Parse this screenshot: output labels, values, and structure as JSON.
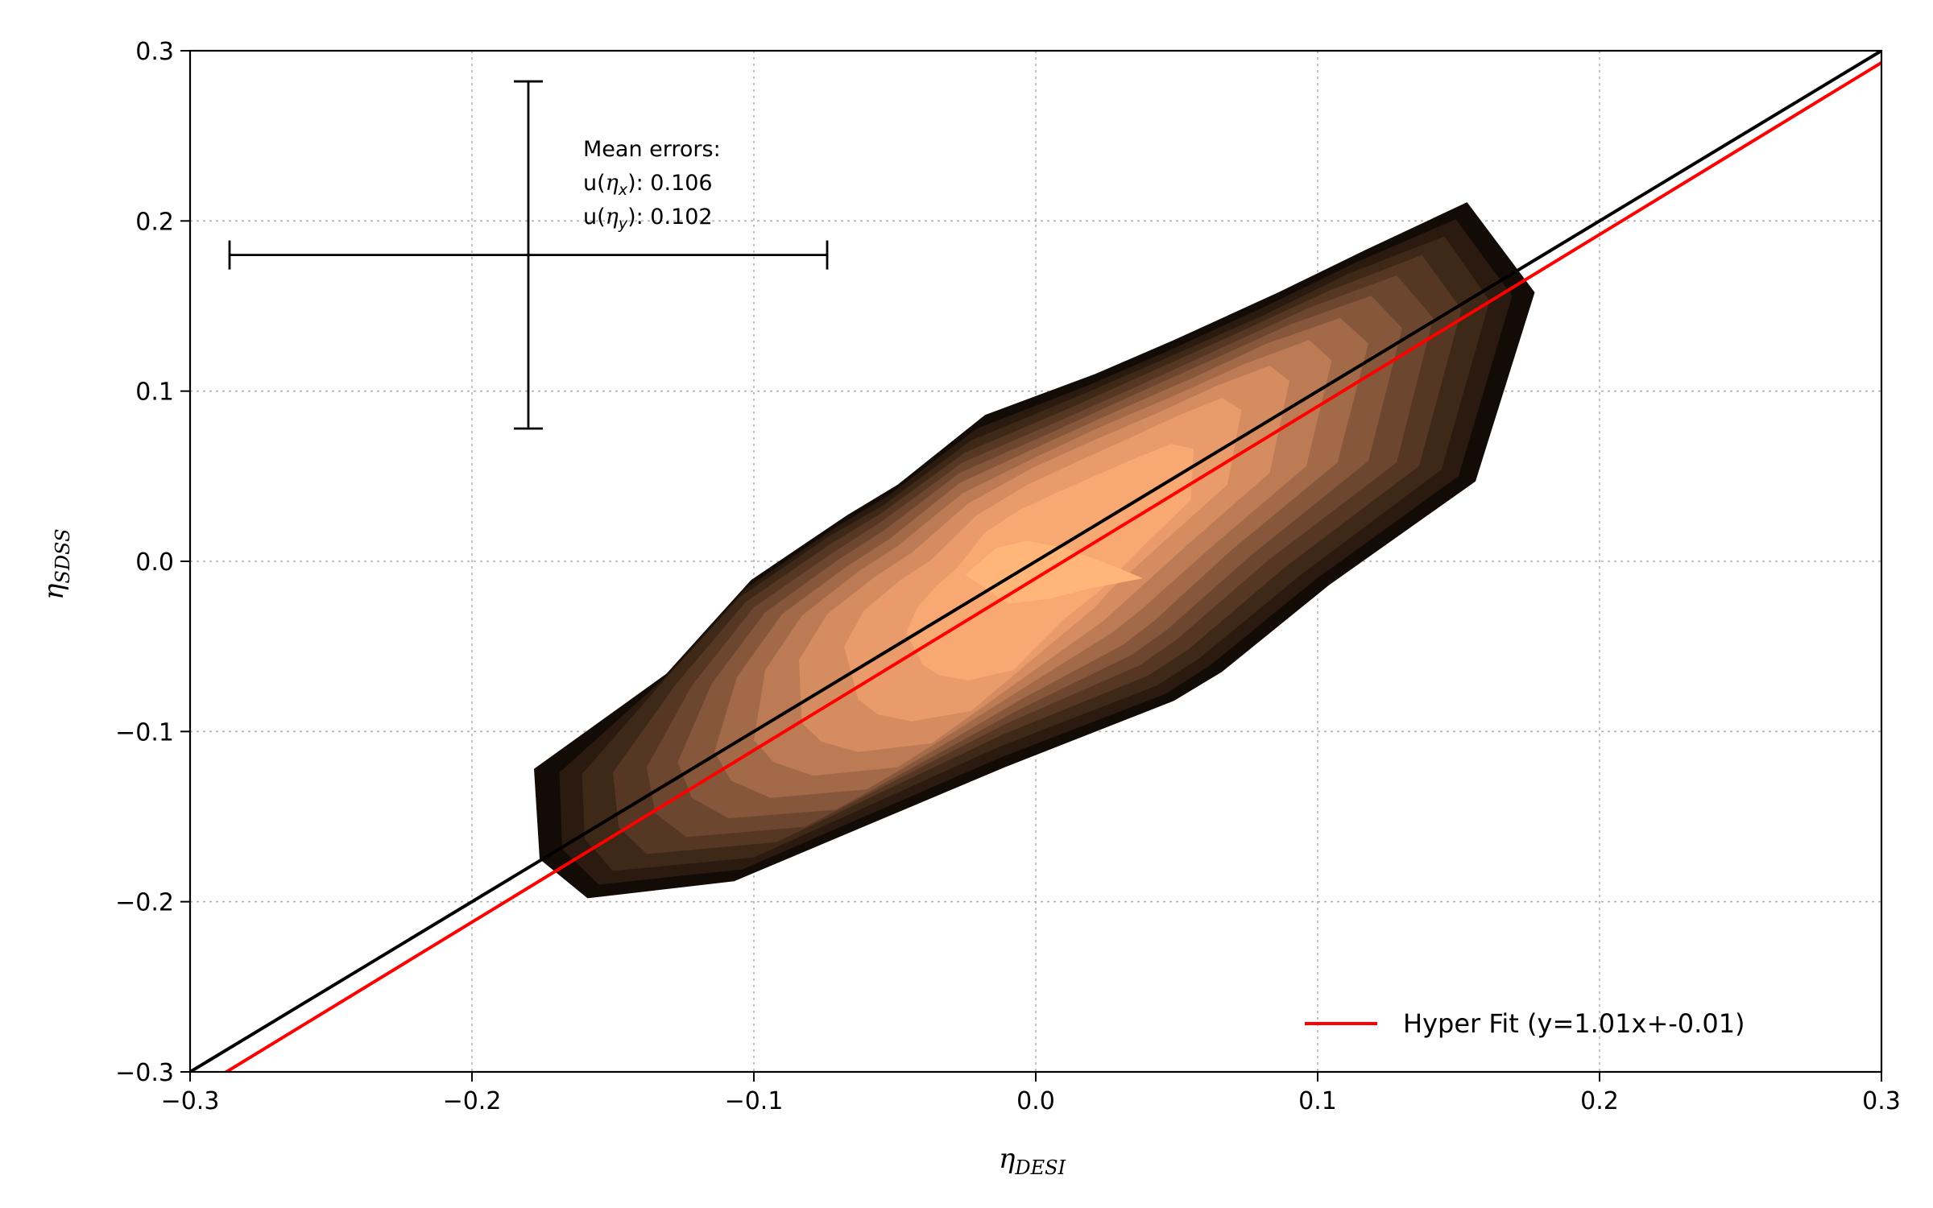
{
  "chart_data": {
    "type": "contour",
    "xlabel": "η",
    "xlabel_sub": "DESI",
    "ylabel": "η",
    "ylabel_sub": "SDSS",
    "xlim": [
      -0.3,
      0.3
    ],
    "ylim": [
      -0.3,
      0.3
    ],
    "xticks": [
      -0.3,
      -0.2,
      -0.1,
      0.0,
      0.1,
      0.2,
      0.3
    ],
    "yticks": [
      -0.3,
      -0.2,
      -0.1,
      0.0,
      0.1,
      0.2,
      0.3
    ],
    "xtick_labels": [
      "−0.3",
      "−0.2",
      "−0.1",
      "0.0",
      "0.1",
      "0.2",
      "0.3"
    ],
    "ytick_labels": [
      "−0.3",
      "−0.2",
      "−0.1",
      "0.0",
      "0.1",
      "0.2",
      "0.3"
    ],
    "grid": true,
    "legend_position": "lower-right",
    "identity_line": {
      "slope": 1.0,
      "intercept": 0.0,
      "color": "#000000"
    },
    "series": [
      {
        "name": "Hyper Fit (y=1.01x+-0.01)",
        "slope": 1.01,
        "intercept": -0.01,
        "color": "#ff0000"
      }
    ],
    "error_bar": {
      "center": [
        -0.18,
        0.18
      ],
      "xerr": 0.106,
      "yerr": 0.102,
      "title": "Mean errors:",
      "line_x_label": "u(",
      "line_x_var": "η",
      "line_x_sub": "x",
      "line_x_value": "): 0.106",
      "line_y_label": "u(",
      "line_y_var": "η",
      "line_y_sub": "y",
      "line_y_value": "): 0.102"
    },
    "contour_colors": [
      "#120b06",
      "#2a1a0f",
      "#3e2818",
      "#553723",
      "#6d4630",
      "#87573b",
      "#a26a48",
      "#bc7b55",
      "#d58c60",
      "#ea9b6b",
      "#f8a872",
      "#ffb678"
    ],
    "contour_levels": [
      [
        [
          -0.178,
          -0.122
        ],
        [
          -0.176,
          -0.175
        ],
        [
          -0.159,
          -0.198
        ],
        [
          -0.107,
          -0.188
        ],
        [
          -0.011,
          -0.121
        ],
        [
          0.049,
          -0.082
        ],
        [
          0.066,
          -0.065
        ],
        [
          0.104,
          -0.014
        ],
        [
          0.156,
          0.047
        ],
        [
          0.177,
          0.158
        ],
        [
          0.153,
          0.211
        ],
        [
          0.117,
          0.183
        ],
        [
          0.086,
          0.158
        ],
        [
          0.049,
          0.13
        ],
        [
          0.021,
          0.11
        ],
        [
          -0.018,
          0.086
        ],
        [
          -0.049,
          0.045
        ],
        [
          -0.067,
          0.027
        ],
        [
          -0.101,
          -0.011
        ],
        [
          -0.131,
          -0.066
        ]
      ],
      [
        [
          -0.169,
          -0.124
        ],
        [
          -0.168,
          -0.169
        ],
        [
          -0.155,
          -0.19
        ],
        [
          -0.104,
          -0.181
        ],
        [
          -0.012,
          -0.115
        ],
        [
          0.046,
          -0.078
        ],
        [
          0.062,
          -0.061
        ],
        [
          0.099,
          -0.011
        ],
        [
          0.15,
          0.05
        ],
        [
          0.169,
          0.156
        ],
        [
          0.149,
          0.201
        ],
        [
          0.114,
          0.176
        ],
        [
          0.083,
          0.151
        ],
        [
          0.046,
          0.123
        ],
        [
          0.018,
          0.103
        ],
        [
          -0.021,
          0.078
        ],
        [
          -0.052,
          0.039
        ],
        [
          -0.07,
          0.021
        ],
        [
          -0.103,
          -0.016
        ],
        [
          -0.132,
          -0.069
        ]
      ],
      [
        [
          -0.161,
          -0.125
        ],
        [
          -0.16,
          -0.163
        ],
        [
          -0.15,
          -0.182
        ],
        [
          -0.1,
          -0.174
        ],
        [
          -0.013,
          -0.109
        ],
        [
          0.043,
          -0.073
        ],
        [
          0.058,
          -0.057
        ],
        [
          0.094,
          -0.008
        ],
        [
          0.144,
          0.054
        ],
        [
          0.161,
          0.153
        ],
        [
          0.145,
          0.191
        ],
        [
          0.111,
          0.169
        ],
        [
          0.08,
          0.144
        ],
        [
          0.043,
          0.117
        ],
        [
          0.015,
          0.097
        ],
        [
          -0.023,
          0.071
        ],
        [
          -0.054,
          0.033
        ],
        [
          -0.073,
          0.015
        ],
        [
          -0.105,
          -0.021
        ],
        [
          -0.133,
          -0.072
        ]
      ],
      [
        [
          -0.15,
          -0.124
        ],
        [
          -0.148,
          -0.156
        ],
        [
          -0.138,
          -0.172
        ],
        [
          -0.092,
          -0.165
        ],
        [
          -0.012,
          -0.102
        ],
        [
          0.04,
          -0.067
        ],
        [
          0.054,
          -0.052
        ],
        [
          0.088,
          -0.004
        ],
        [
          0.136,
          0.056
        ],
        [
          0.151,
          0.148
        ],
        [
          0.137,
          0.18
        ],
        [
          0.104,
          0.159
        ],
        [
          0.074,
          0.136
        ],
        [
          0.039,
          0.11
        ],
        [
          0.012,
          0.09
        ],
        [
          -0.025,
          0.064
        ],
        [
          -0.055,
          0.028
        ],
        [
          -0.073,
          0.01
        ],
        [
          -0.103,
          -0.024
        ],
        [
          -0.128,
          -0.073
        ]
      ],
      [
        [
          -0.138,
          -0.121
        ],
        [
          -0.135,
          -0.148
        ],
        [
          -0.124,
          -0.162
        ],
        [
          -0.082,
          -0.156
        ],
        [
          -0.01,
          -0.095
        ],
        [
          0.037,
          -0.061
        ],
        [
          0.05,
          -0.046
        ],
        [
          0.082,
          0.0
        ],
        [
          0.128,
          0.058
        ],
        [
          0.141,
          0.143
        ],
        [
          0.128,
          0.168
        ],
        [
          0.097,
          0.149
        ],
        [
          0.068,
          0.127
        ],
        [
          0.035,
          0.102
        ],
        [
          0.009,
          0.083
        ],
        [
          -0.026,
          0.058
        ],
        [
          -0.055,
          0.023
        ],
        [
          -0.072,
          0.005
        ],
        [
          -0.1,
          -0.027
        ],
        [
          -0.122,
          -0.073
        ]
      ],
      [
        [
          -0.127,
          -0.118
        ],
        [
          -0.122,
          -0.139
        ],
        [
          -0.109,
          -0.151
        ],
        [
          -0.071,
          -0.146
        ],
        [
          -0.007,
          -0.088
        ],
        [
          0.034,
          -0.055
        ],
        [
          0.046,
          -0.041
        ],
        [
          0.076,
          0.003
        ],
        [
          0.118,
          0.059
        ],
        [
          0.13,
          0.137
        ],
        [
          0.119,
          0.156
        ],
        [
          0.09,
          0.139
        ],
        [
          0.062,
          0.118
        ],
        [
          0.031,
          0.095
        ],
        [
          0.006,
          0.076
        ],
        [
          -0.027,
          0.052
        ],
        [
          -0.054,
          0.018
        ],
        [
          -0.07,
          0.001
        ],
        [
          -0.096,
          -0.03
        ],
        [
          -0.115,
          -0.072
        ]
      ],
      [
        [
          -0.114,
          -0.112
        ],
        [
          -0.108,
          -0.129
        ],
        [
          -0.094,
          -0.139
        ],
        [
          -0.06,
          -0.134
        ],
        [
          -0.004,
          -0.08
        ],
        [
          0.031,
          -0.049
        ],
        [
          0.042,
          -0.035
        ],
        [
          0.069,
          0.006
        ],
        [
          0.107,
          0.058
        ],
        [
          0.118,
          0.128
        ],
        [
          0.108,
          0.143
        ],
        [
          0.082,
          0.128
        ],
        [
          0.056,
          0.108
        ],
        [
          0.027,
          0.087
        ],
        [
          0.003,
          0.069
        ],
        [
          -0.027,
          0.046
        ],
        [
          -0.052,
          0.013
        ],
        [
          -0.067,
          -0.003
        ],
        [
          -0.09,
          -0.031
        ],
        [
          -0.106,
          -0.068
        ]
      ],
      [
        [
          -0.1,
          -0.105
        ],
        [
          -0.093,
          -0.118
        ],
        [
          -0.079,
          -0.126
        ],
        [
          -0.049,
          -0.121
        ],
        [
          -0.001,
          -0.071
        ],
        [
          0.027,
          -0.042
        ],
        [
          0.037,
          -0.029
        ],
        [
          0.062,
          0.008
        ],
        [
          0.096,
          0.056
        ],
        [
          0.105,
          0.118
        ],
        [
          0.097,
          0.13
        ],
        [
          0.074,
          0.116
        ],
        [
          0.05,
          0.098
        ],
        [
          0.023,
          0.079
        ],
        [
          0.001,
          0.062
        ],
        [
          -0.026,
          0.04
        ],
        [
          -0.049,
          0.009
        ],
        [
          -0.063,
          -0.006
        ],
        [
          -0.083,
          -0.032
        ],
        [
          -0.096,
          -0.064
        ]
      ],
      [
        [
          -0.083,
          -0.095
        ],
        [
          -0.076,
          -0.106
        ],
        [
          -0.063,
          -0.112
        ],
        [
          -0.037,
          -0.107
        ],
        [
          0.002,
          -0.061
        ],
        [
          0.024,
          -0.035
        ],
        [
          0.032,
          -0.023
        ],
        [
          0.054,
          0.01
        ],
        [
          0.083,
          0.052
        ],
        [
          0.09,
          0.106
        ],
        [
          0.083,
          0.115
        ],
        [
          0.064,
          0.103
        ],
        [
          0.043,
          0.087
        ],
        [
          0.019,
          0.07
        ],
        [
          -0.001,
          0.055
        ],
        [
          -0.024,
          0.034
        ],
        [
          -0.044,
          0.005
        ],
        [
          -0.057,
          -0.009
        ],
        [
          -0.074,
          -0.031
        ],
        [
          -0.084,
          -0.058
        ]
      ],
      [
        [
          -0.063,
          -0.081
        ],
        [
          -0.056,
          -0.09
        ],
        [
          -0.044,
          -0.094
        ],
        [
          -0.023,
          -0.088
        ],
        [
          0.005,
          -0.049
        ],
        [
          0.021,
          -0.027
        ],
        [
          0.027,
          -0.016
        ],
        [
          0.045,
          0.011
        ],
        [
          0.068,
          0.045
        ],
        [
          0.073,
          0.089
        ],
        [
          0.066,
          0.096
        ],
        [
          0.051,
          0.086
        ],
        [
          0.034,
          0.073
        ],
        [
          0.014,
          0.058
        ],
        [
          -0.003,
          0.045
        ],
        [
          -0.021,
          0.027
        ],
        [
          -0.037,
          0.001
        ],
        [
          -0.048,
          -0.011
        ],
        [
          -0.061,
          -0.029
        ],
        [
          -0.068,
          -0.05
        ]
      ],
      [
        [
          -0.04,
          -0.061
        ],
        [
          -0.034,
          -0.067
        ],
        [
          -0.024,
          -0.07
        ],
        [
          -0.008,
          -0.064
        ],
        [
          0.01,
          -0.034
        ],
        [
          0.023,
          -0.017
        ],
        [
          0.028,
          -0.008
        ],
        [
          0.04,
          0.012
        ],
        [
          0.055,
          0.036
        ],
        [
          0.056,
          0.066
        ],
        [
          0.048,
          0.069
        ],
        [
          0.036,
          0.061
        ],
        [
          0.022,
          0.051
        ],
        [
          0.007,
          0.04
        ],
        [
          -0.006,
          0.03
        ],
        [
          -0.018,
          0.017
        ],
        [
          -0.028,
          -0.004
        ],
        [
          -0.035,
          -0.014
        ],
        [
          -0.042,
          -0.027
        ],
        [
          -0.046,
          -0.042
        ]
      ],
      [
        [
          -0.025,
          -0.008
        ],
        [
          -0.01,
          -0.025
        ],
        [
          0.005,
          -0.022
        ],
        [
          0.019,
          -0.016
        ],
        [
          0.038,
          -0.01
        ],
        [
          0.025,
          -0.001
        ],
        [
          0.01,
          0.008
        ],
        [
          -0.003,
          0.012
        ],
        [
          -0.014,
          0.008
        ]
      ]
    ]
  }
}
